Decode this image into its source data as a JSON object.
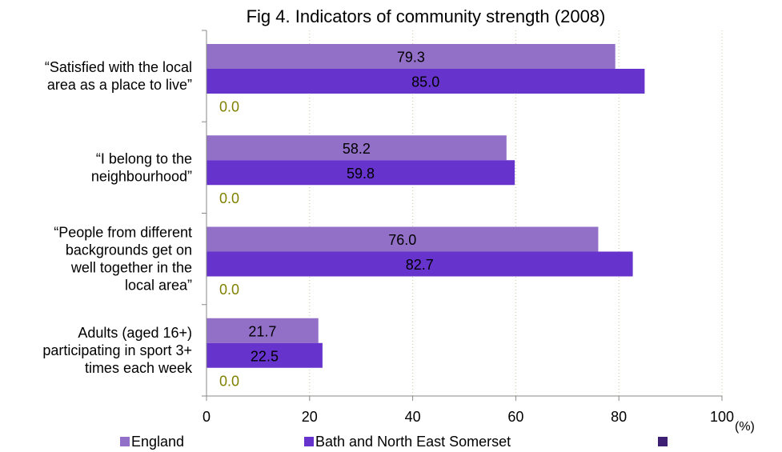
{
  "chart_data": {
    "type": "bar",
    "orientation": "horizontal",
    "title": "Fig 4. Indicators of community strength (2008)",
    "unit_label": "(%)",
    "xlim": [
      0,
      100
    ],
    "x_ticks": [
      "0",
      "20",
      "40",
      "60",
      "80",
      "100"
    ],
    "grid": "vertical dotted",
    "legend_position": "bottom",
    "categories": [
      [
        "“Satisfied with the local",
        "area as a place to live”"
      ],
      [
        "“I belong to the",
        "neighbourhood”"
      ],
      [
        "“People from different",
        "backgrounds get on",
        "well together in the",
        "local area”"
      ],
      [
        "Adults (aged 16+)",
        "participating in sport 3+",
        "times each week"
      ]
    ],
    "series": [
      {
        "name": "England",
        "color": "#9370c8",
        "values": [
          79.3,
          58.2,
          76.0,
          21.7
        ],
        "labels": [
          "79.3",
          "58.2",
          "76.0",
          "21.7"
        ]
      },
      {
        "name": "Bath and North East Somerset",
        "color": "#6633cc",
        "values": [
          85.0,
          59.8,
          82.7,
          22.5
        ],
        "labels": [
          "85.0",
          "59.8",
          "82.7",
          "22.5"
        ]
      },
      {
        "name": "",
        "color": "#3d1f73",
        "values": [
          0,
          0,
          0,
          0
        ],
        "labels": [
          "0.0",
          "0.0",
          "0.0",
          "0.0"
        ]
      }
    ]
  }
}
